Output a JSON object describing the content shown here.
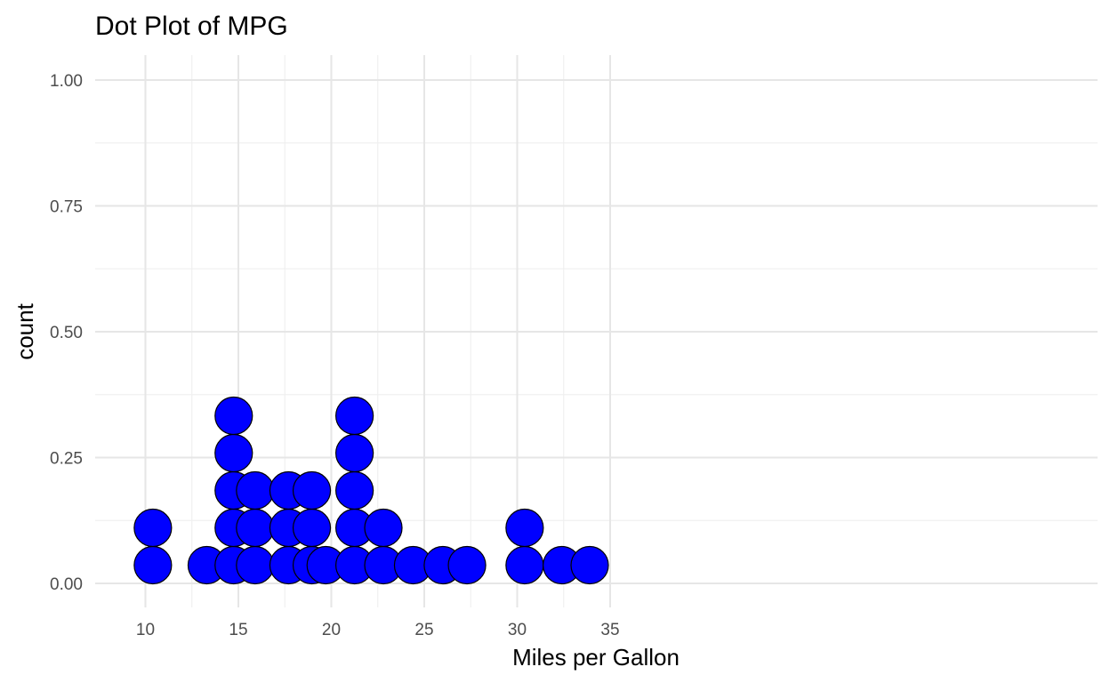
{
  "chart_data": {
    "type": "scatter",
    "subtype": "dotplot",
    "title": "Dot Plot of MPG",
    "xlabel": "Miles per Gallon",
    "ylabel": "count",
    "xlim": [
      9,
      35.5
    ],
    "ylim": [
      -0.045,
      1.05
    ],
    "x_ticks": [
      10,
      15,
      20,
      25,
      30,
      35
    ],
    "x_tick_labels": [
      "10",
      "15",
      "20",
      "25",
      "30",
      "35"
    ],
    "y_ticks": [
      0,
      0.25,
      0.5,
      0.75,
      1
    ],
    "y_tick_labels": [
      "0.00",
      "0.25",
      "0.50",
      "0.75",
      "1.00"
    ],
    "grid": true,
    "legend": "none",
    "dot_color": "#0000ff",
    "dot_outline": "#000000",
    "stacks": [
      {
        "x": 10.4,
        "count": 2
      },
      {
        "x": 13.3,
        "count": 1
      },
      {
        "x": 14.75,
        "count": 5
      },
      {
        "x": 15.9,
        "count": 3
      },
      {
        "x": 17.7,
        "count": 3
      },
      {
        "x": 18.95,
        "count": 3
      },
      {
        "x": 19.7,
        "count": 1
      },
      {
        "x": 21.25,
        "count": 5
      },
      {
        "x": 22.8,
        "count": 2
      },
      {
        "x": 24.4,
        "count": 1
      },
      {
        "x": 26.0,
        "count": 1
      },
      {
        "x": 27.3,
        "count": 1
      },
      {
        "x": 30.4,
        "count": 2
      },
      {
        "x": 32.4,
        "count": 1
      },
      {
        "x": 33.9,
        "count": 1
      }
    ]
  }
}
